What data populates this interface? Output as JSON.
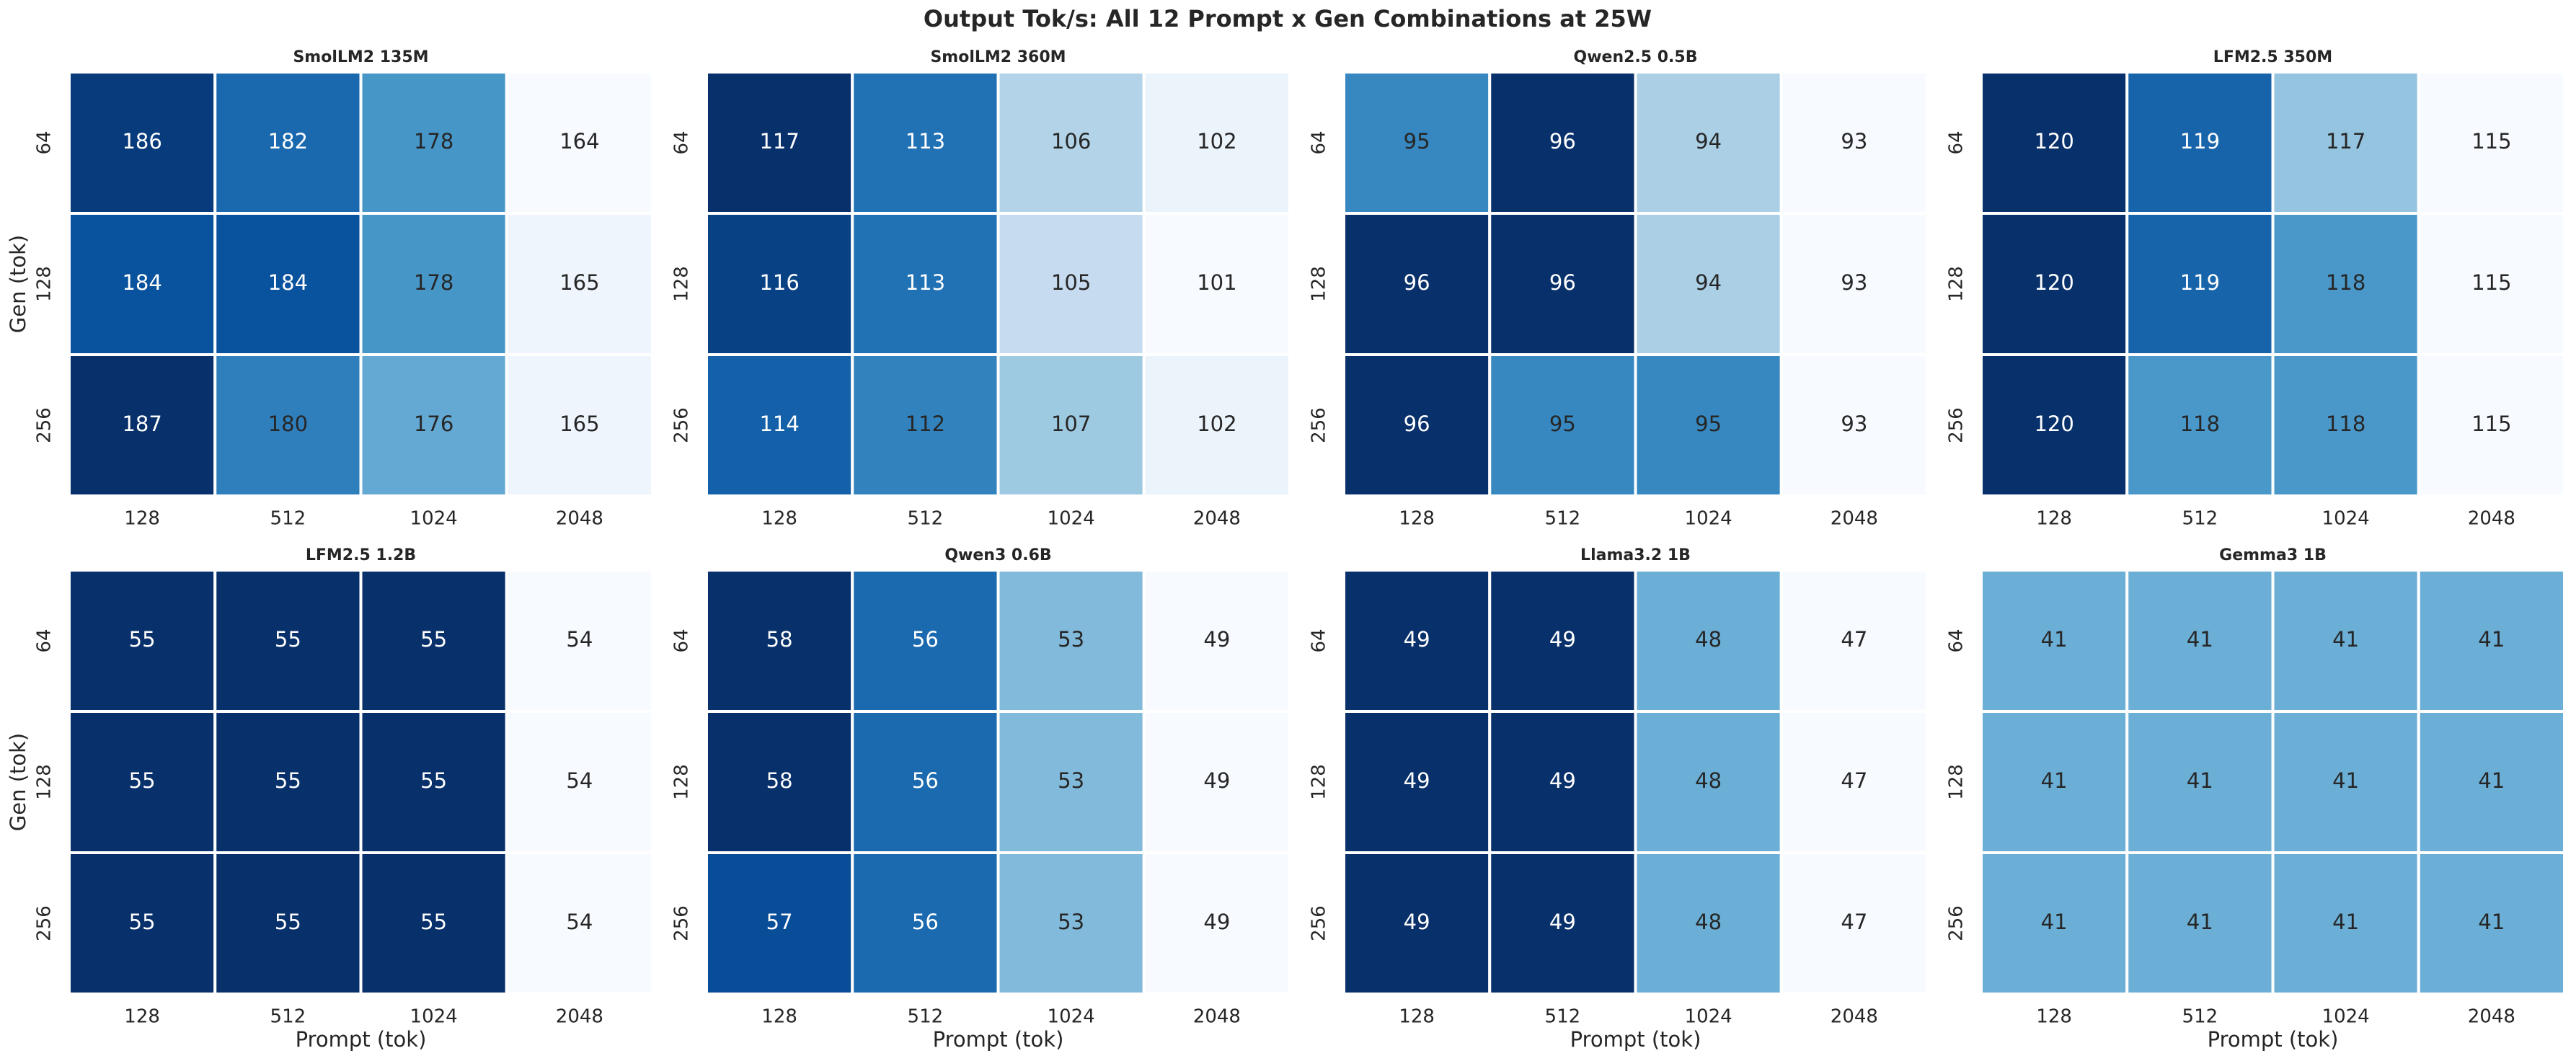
{
  "title": "Output Tok/s: All 12 Prompt x Gen Combinations at 25W",
  "chart_data": [
    {
      "type": "heatmap",
      "title": "SmolLM2 135M",
      "colormap": "Blues",
      "ylabel": "Gen (tok)",
      "x_categories": [
        "128",
        "512",
        "1024",
        "2048"
      ],
      "y_categories": [
        "64",
        "128",
        "256"
      ],
      "values": [
        [
          186,
          182,
          178,
          164
        ],
        [
          184,
          184,
          178,
          165
        ],
        [
          187,
          180,
          176,
          165
        ]
      ]
    },
    {
      "type": "heatmap",
      "title": "SmolLM2 360M",
      "colormap": "Blues",
      "x_categories": [
        "128",
        "512",
        "1024",
        "2048"
      ],
      "y_categories": [
        "64",
        "128",
        "256"
      ],
      "values": [
        [
          117,
          113,
          106,
          102
        ],
        [
          116,
          113,
          105,
          101
        ],
        [
          114,
          112,
          107,
          102
        ]
      ]
    },
    {
      "type": "heatmap",
      "title": "Qwen2.5 0.5B",
      "colormap": "Blues",
      "x_categories": [
        "128",
        "512",
        "1024",
        "2048"
      ],
      "y_categories": [
        "64",
        "128",
        "256"
      ],
      "values": [
        [
          95,
          96,
          94,
          93
        ],
        [
          96,
          96,
          94,
          93
        ],
        [
          96,
          95,
          95,
          93
        ]
      ]
    },
    {
      "type": "heatmap",
      "title": "LFM2.5 350M",
      "colormap": "Blues",
      "x_categories": [
        "128",
        "512",
        "1024",
        "2048"
      ],
      "y_categories": [
        "64",
        "128",
        "256"
      ],
      "values": [
        [
          120,
          119,
          117,
          115
        ],
        [
          120,
          119,
          118,
          115
        ],
        [
          120,
          118,
          118,
          115
        ]
      ]
    },
    {
      "type": "heatmap",
      "title": "LFM2.5 1.2B",
      "colormap": "Blues",
      "ylabel": "Gen (tok)",
      "xlabel": "Prompt (tok)",
      "x_categories": [
        "128",
        "512",
        "1024",
        "2048"
      ],
      "y_categories": [
        "64",
        "128",
        "256"
      ],
      "values": [
        [
          55,
          55,
          55,
          54
        ],
        [
          55,
          55,
          55,
          54
        ],
        [
          55,
          55,
          55,
          54
        ]
      ]
    },
    {
      "type": "heatmap",
      "title": "Qwen3 0.6B",
      "colormap": "Blues",
      "xlabel": "Prompt (tok)",
      "x_categories": [
        "128",
        "512",
        "1024",
        "2048"
      ],
      "y_categories": [
        "64",
        "128",
        "256"
      ],
      "values": [
        [
          58,
          56,
          53,
          49
        ],
        [
          58,
          56,
          53,
          49
        ],
        [
          57,
          56,
          53,
          49
        ]
      ]
    },
    {
      "type": "heatmap",
      "title": "Llama3.2 1B",
      "colormap": "Blues",
      "xlabel": "Prompt (tok)",
      "x_categories": [
        "128",
        "512",
        "1024",
        "2048"
      ],
      "y_categories": [
        "64",
        "128",
        "256"
      ],
      "values": [
        [
          49,
          49,
          48,
          47
        ],
        [
          49,
          49,
          48,
          47
        ],
        [
          49,
          49,
          48,
          47
        ]
      ]
    },
    {
      "type": "heatmap",
      "title": "Gemma3 1B",
      "colormap": "Blues",
      "xlabel": "Prompt (tok)",
      "x_categories": [
        "128",
        "512",
        "1024",
        "2048"
      ],
      "y_categories": [
        "64",
        "128",
        "256"
      ],
      "values": [
        [
          41,
          41,
          41,
          41
        ],
        [
          41,
          41,
          41,
          41
        ],
        [
          41,
          41,
          41,
          41
        ]
      ]
    }
  ]
}
